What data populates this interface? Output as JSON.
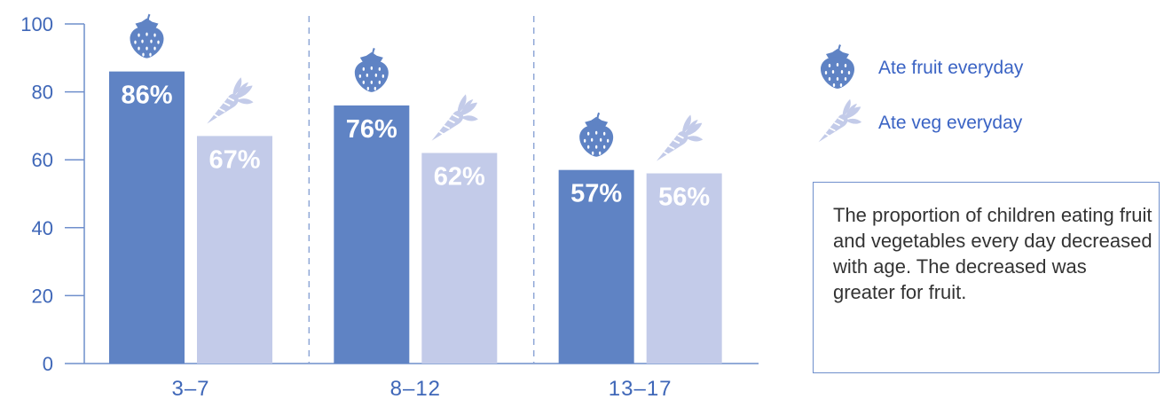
{
  "chart_data": {
    "type": "bar",
    "categories": [
      "3–7",
      "8–12",
      "13–17"
    ],
    "series": [
      {
        "name": "Ate fruit everyday",
        "values": [
          86,
          76,
          57
        ],
        "labels": [
          "86%",
          "76%",
          "57%"
        ],
        "color": "#5f83c4",
        "icon": "strawberry-icon"
      },
      {
        "name": "Ate veg everyday",
        "values": [
          67,
          62,
          56
        ],
        "labels": [
          "67%",
          "62%",
          "56%"
        ],
        "color": "#c3cbe9",
        "icon": "carrot-icon"
      }
    ],
    "y_ticks": [
      "0",
      "20",
      "40",
      "60",
      "80",
      "100"
    ],
    "ylim": [
      0,
      100
    ],
    "grid": false,
    "category_separators": "dashed",
    "legend_position": "right",
    "xlabel": "",
    "ylabel": ""
  },
  "note": {
    "text": "The proportion of children eating fruit and vegetables every day decreased with age. The decreased was greater for fruit."
  },
  "colors": {
    "axis": "#6f8fcc",
    "tick_text": "#3f67b8",
    "legend_text": "#3a63c4"
  }
}
